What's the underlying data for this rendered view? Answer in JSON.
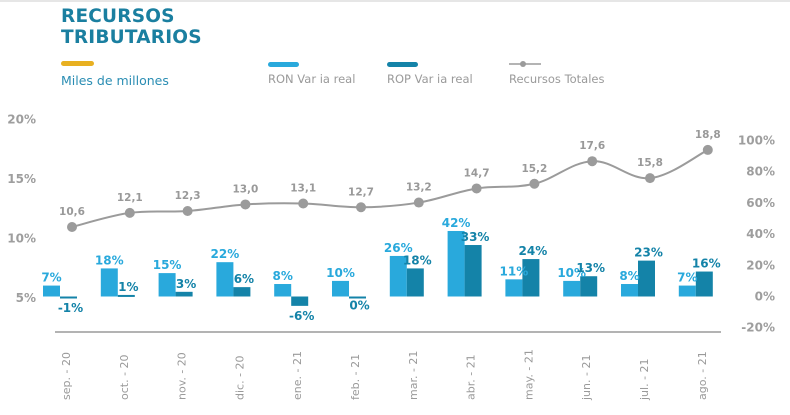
{
  "header": {
    "title_line1": "RECURSOS",
    "title_line2": "TRIBUTARIOS",
    "subtitle": "Miles de millones"
  },
  "colors": {
    "title": "#1a7fa0",
    "accent": "#e8b021",
    "ron": "#29a9dc",
    "rop": "#1483a8",
    "line": "#9b9b9b"
  },
  "chart_data": {
    "type": "bar",
    "title": "RECURSOS TRIBUTARIOS",
    "subtitle": "Miles de millones",
    "categories": [
      "sep. - 20",
      "oct. - 20",
      "nov. - 20",
      "dic. - 20",
      "ene. - 21",
      "feb. - 21",
      "mar. - 21",
      "abr. - 21",
      "may. - 21",
      "jun. - 21",
      "jul. - 21",
      "ago. - 21"
    ],
    "series": [
      {
        "name": "RON Var ia real",
        "type": "bar",
        "axis": "right",
        "unit": "%",
        "values": [
          7,
          18,
          15,
          22,
          8,
          10,
          26,
          42,
          11,
          10,
          8,
          7
        ]
      },
      {
        "name": "ROP Var ia real",
        "type": "bar",
        "axis": "right",
        "unit": "%",
        "values": [
          -1,
          1,
          3,
          6,
          -6,
          0,
          18,
          33,
          24,
          13,
          23,
          16
        ]
      },
      {
        "name": "Recursos Totales",
        "type": "line",
        "axis": "left",
        "values": [
          10.6,
          12.1,
          12.3,
          13.0,
          13.1,
          12.7,
          13.2,
          14.7,
          15.2,
          17.6,
          15.8,
          18.8
        ],
        "labels": [
          "10,6",
          "12,1",
          "12,3",
          "13,0",
          "13,1",
          "12,7",
          "13,2",
          "14,7",
          "15,2",
          "17,6",
          "15,8",
          "18,8"
        ]
      }
    ],
    "left_axis": {
      "ticks": [
        "5%",
        "10%",
        "15%",
        "20%"
      ],
      "range": [
        5,
        20
      ]
    },
    "right_axis": {
      "ticks": [
        "-20%",
        "0%",
        "20%",
        "40%",
        "60%",
        "80%",
        "100%"
      ],
      "range": [
        -20,
        100
      ]
    },
    "xlabel": "",
    "ylabel": "",
    "legend": {
      "placement": "top",
      "entries": [
        "RON Var ia real",
        "ROP Var ia real",
        "Recursos Totales"
      ]
    },
    "grid": false
  }
}
